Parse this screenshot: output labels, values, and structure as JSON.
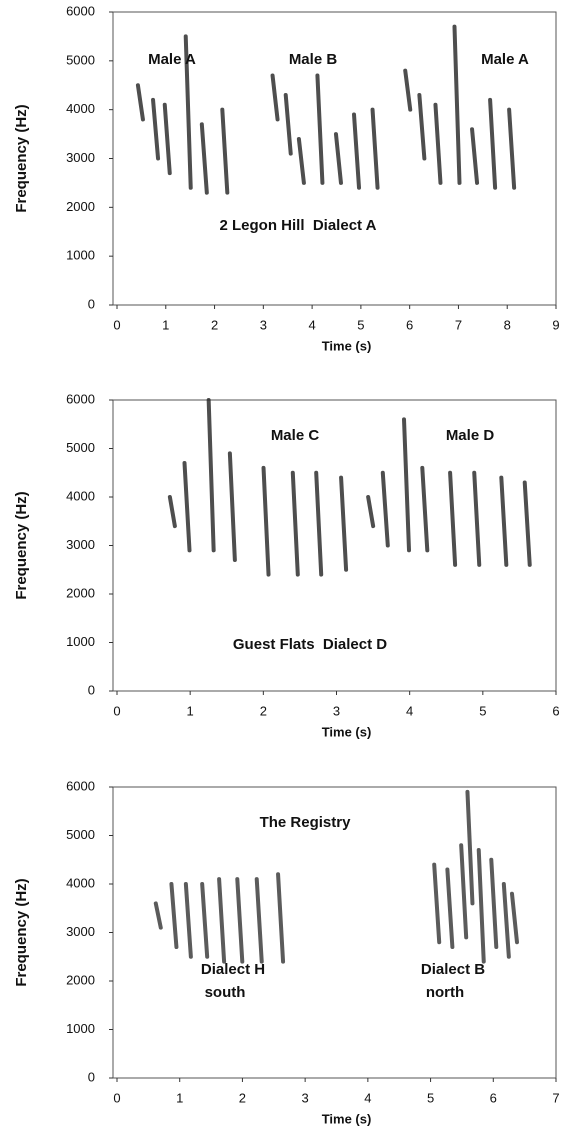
{
  "chart_data": [
    {
      "type": "spectrogram",
      "xlabel": "Time (s)",
      "ylabel": "Frequency (Hz)",
      "color": "#222222",
      "xlim": [
        0,
        9
      ],
      "ylim": [
        0,
        6000
      ],
      "xticks": [
        0,
        1,
        2,
        3,
        4,
        5,
        6,
        7,
        8,
        9
      ],
      "yticks": [
        0,
        1000,
        2000,
        3000,
        4000,
        5000,
        6000
      ],
      "annotations": [
        "Male A",
        "Male B",
        "Male A",
        "2 Legon Hill  Dialect A"
      ],
      "x": [
        0.47,
        0.78,
        1.02,
        1.45,
        1.78,
        2.2,
        3.23,
        3.5,
        3.77,
        4.15,
        4.53,
        4.9,
        5.28,
        5.95,
        6.24,
        6.57,
        6.96,
        7.32,
        7.69,
        8.08
      ],
      "y_top": [
        4500,
        4200,
        4100,
        5500,
        3700,
        4000,
        4700,
        4300,
        3400,
        4700,
        3500,
        3900,
        4000,
        4800,
        4300,
        4100,
        5700,
        3600,
        4200,
        4000
      ],
      "y_bottom": [
        3800,
        3000,
        2700,
        2400,
        2300,
        2300,
        3800,
        3100,
        2500,
        2500,
        2500,
        2400,
        2400,
        4000,
        3000,
        2500,
        2500,
        2500,
        2400,
        2400
      ]
    },
    {
      "type": "spectrogram",
      "xlabel": "Time (s)",
      "ylabel": "Frequency (Hz)",
      "color": "#222222",
      "xlim": [
        0,
        6
      ],
      "ylim": [
        0,
        6000
      ],
      "xticks": [
        0,
        1,
        2,
        3,
        4,
        5,
        6
      ],
      "yticks": [
        0,
        1000,
        2000,
        3000,
        4000,
        5000,
        6000
      ],
      "annotations": [
        "Male C",
        "Male D",
        "Guest Flats  Dialect D"
      ],
      "x": [
        0.75,
        0.95,
        1.28,
        1.57,
        2.03,
        2.43,
        2.75,
        3.09,
        3.46,
        3.66,
        3.95,
        4.2,
        4.58,
        4.91,
        5.28,
        5.6
      ],
      "y_top": [
        4000,
        4700,
        6000,
        4900,
        4600,
        4500,
        4500,
        4400,
        4000,
        4500,
        5600,
        4600,
        4500,
        4500,
        4400,
        4300
      ],
      "y_bottom": [
        3400,
        2900,
        2900,
        2700,
        2400,
        2400,
        2400,
        2500,
        3400,
        3000,
        2900,
        2900,
        2600,
        2600,
        2600,
        2600
      ]
    },
    {
      "type": "spectrogram",
      "xlabel": "Time (s)",
      "ylabel": "Frequency (Hz)",
      "color": "#333333",
      "xlim": [
        0,
        7
      ],
      "ylim": [
        0,
        6000
      ],
      "xticks": [
        0,
        1,
        2,
        3,
        4,
        5,
        6,
        7
      ],
      "yticks": [
        0,
        1000,
        2000,
        3000,
        4000,
        5000,
        6000
      ],
      "annotations": [
        "The Registry",
        "Dialect H",
        "south",
        "Dialect B",
        "north"
      ],
      "x": [
        0.65,
        0.9,
        1.13,
        1.39,
        1.66,
        1.95,
        2.26,
        2.6,
        5.09,
        5.3,
        5.52,
        5.62,
        5.8,
        6.0,
        6.2,
        6.33
      ],
      "y_top": [
        3600,
        4000,
        4000,
        4000,
        4100,
        4100,
        4100,
        4200,
        4400,
        4300,
        4800,
        5900,
        4700,
        4500,
        4000,
        3800
      ],
      "y_bottom": [
        3100,
        2700,
        2500,
        2500,
        2400,
        2400,
        2400,
        2400,
        2800,
        2700,
        2900,
        3600,
        2400,
        2700,
        2500,
        2800
      ]
    }
  ]
}
